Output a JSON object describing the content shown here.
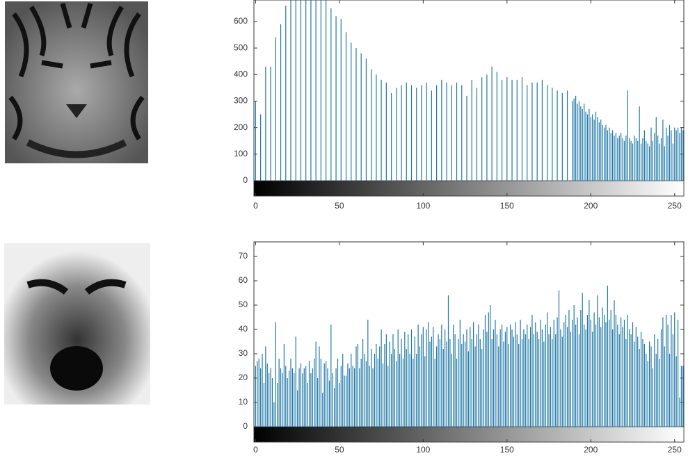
{
  "chart_data": [
    {
      "type": "bar",
      "color": "#1f78a6",
      "xlim": [
        -1,
        255.5
      ],
      "ylim": [
        0,
        681
      ],
      "xticks": [
        0,
        50,
        100,
        150,
        200,
        250
      ],
      "yticks": [
        0,
        100,
        200,
        300,
        400,
        500,
        600
      ],
      "x": [
        0,
        3,
        6,
        9,
        12,
        15,
        18,
        21,
        24,
        27,
        30,
        33,
        36,
        39,
        42,
        45,
        48,
        51,
        54,
        57,
        60,
        63,
        66,
        69,
        72,
        75,
        78,
        81,
        84,
        87,
        90,
        93,
        96,
        99,
        102,
        105,
        108,
        111,
        114,
        117,
        120,
        123,
        126,
        129,
        132,
        135,
        138,
        141,
        144,
        147,
        150,
        153,
        156,
        159,
        162,
        165,
        168,
        171,
        174,
        177,
        180,
        183,
        186,
        189,
        190,
        191,
        192,
        193,
        194,
        195,
        196,
        197,
        198,
        199,
        200,
        201,
        202,
        203,
        204,
        205,
        206,
        207,
        208,
        209,
        210,
        211,
        212,
        213,
        214,
        215,
        216,
        217,
        218,
        219,
        220,
        221,
        222,
        223,
        224,
        225,
        226,
        227,
        228,
        229,
        230,
        231,
        232,
        233,
        234,
        235,
        236,
        237,
        238,
        239,
        240,
        241,
        242,
        243,
        244,
        245,
        246,
        247,
        248,
        249,
        250,
        251,
        252,
        253,
        254,
        255
      ],
      "values": [
        300,
        250,
        430,
        430,
        540,
        590,
        660,
        680,
        680,
        680,
        680,
        680,
        680,
        680,
        680,
        650,
        620,
        610,
        560,
        520,
        500,
        480,
        460,
        420,
        400,
        380,
        370,
        330,
        350,
        360,
        370,
        360,
        350,
        360,
        370,
        340,
        360,
        380,
        370,
        360,
        370,
        360,
        320,
        380,
        350,
        390,
        400,
        430,
        410,
        380,
        390,
        380,
        380,
        390,
        360,
        370,
        370,
        380,
        360,
        350,
        340,
        330,
        340,
        300,
        310,
        320,
        290,
        300,
        280,
        270,
        290,
        260,
        250,
        270,
        240,
        250,
        230,
        260,
        240,
        220,
        230,
        210,
        200,
        210,
        190,
        200,
        180,
        190,
        170,
        180,
        160,
        170,
        180,
        160,
        150,
        170,
        340,
        160,
        150,
        140,
        170,
        160,
        150,
        280,
        140,
        160,
        190,
        150,
        140,
        130,
        200,
        150,
        180,
        240,
        170,
        140,
        160,
        230,
        130,
        200,
        170,
        210,
        190,
        140,
        200,
        190,
        200,
        180,
        200,
        190
      ]
    },
    {
      "type": "bar",
      "color": "#1f78a6",
      "xlim": [
        -1,
        255.5
      ],
      "ylim": [
        0,
        76
      ],
      "xticks": [
        0,
        50,
        100,
        150,
        200,
        250
      ],
      "yticks": [
        0,
        10,
        20,
        30,
        40,
        50,
        60,
        70
      ],
      "x": [
        0,
        1,
        2,
        3,
        4,
        5,
        6,
        7,
        8,
        9,
        10,
        11,
        12,
        13,
        14,
        15,
        16,
        17,
        18,
        19,
        20,
        21,
        22,
        23,
        24,
        25,
        26,
        27,
        28,
        29,
        30,
        31,
        32,
        33,
        34,
        35,
        36,
        37,
        38,
        39,
        40,
        41,
        42,
        43,
        44,
        45,
        46,
        47,
        48,
        49,
        50,
        51,
        52,
        53,
        54,
        55,
        56,
        57,
        58,
        59,
        60,
        61,
        62,
        63,
        64,
        65,
        66,
        67,
        68,
        69,
        70,
        71,
        72,
        73,
        74,
        75,
        76,
        77,
        78,
        79,
        80,
        81,
        82,
        83,
        84,
        85,
        86,
        87,
        88,
        89,
        90,
        91,
        92,
        93,
        94,
        95,
        96,
        97,
        98,
        99,
        100,
        101,
        102,
        103,
        104,
        105,
        106,
        107,
        108,
        109,
        110,
        111,
        112,
        113,
        114,
        115,
        116,
        117,
        118,
        119,
        120,
        121,
        122,
        123,
        124,
        125,
        126,
        127,
        128,
        129,
        130,
        131,
        132,
        133,
        134,
        135,
        136,
        137,
        138,
        139,
        140,
        141,
        142,
        143,
        144,
        145,
        146,
        147,
        148,
        149,
        150,
        151,
        152,
        153,
        154,
        155,
        156,
        157,
        158,
        159,
        160,
        161,
        162,
        163,
        164,
        165,
        166,
        167,
        168,
        169,
        170,
        171,
        172,
        173,
        174,
        175,
        176,
        177,
        178,
        179,
        180,
        181,
        182,
        183,
        184,
        185,
        186,
        187,
        188,
        189,
        190,
        191,
        192,
        193,
        194,
        195,
        196,
        197,
        198,
        199,
        200,
        201,
        202,
        203,
        204,
        205,
        206,
        207,
        208,
        209,
        210,
        211,
        212,
        213,
        214,
        215,
        216,
        217,
        218,
        219,
        220,
        221,
        222,
        223,
        224,
        225,
        226,
        227,
        228,
        229,
        230,
        231,
        232,
        233,
        234,
        235,
        236,
        237,
        238,
        239,
        240,
        241,
        242,
        243,
        244,
        245,
        246,
        247,
        248,
        249,
        250,
        251,
        252,
        253,
        254,
        255
      ],
      "values": [
        25,
        27,
        28,
        24,
        30,
        18,
        33,
        26,
        22,
        24,
        20,
        10,
        43,
        18,
        28,
        24,
        22,
        34,
        25,
        20,
        23,
        28,
        24,
        22,
        37,
        15,
        24,
        26,
        22,
        24,
        25,
        18,
        27,
        22,
        24,
        28,
        35,
        20,
        33,
        28,
        14,
        26,
        27,
        24,
        19,
        42,
        22,
        16,
        24,
        28,
        18,
        25,
        30,
        21,
        21,
        26,
        24,
        30,
        25,
        24,
        33,
        34,
        24,
        28,
        36,
        30,
        27,
        44,
        25,
        32,
        24,
        30,
        34,
        28,
        33,
        40,
        26,
        34,
        38,
        25,
        35,
        30,
        38,
        32,
        27,
        40,
        30,
        36,
        28,
        39,
        32,
        38,
        30,
        40,
        28,
        37,
        30,
        42,
        33,
        38,
        41,
        29,
        40,
        43,
        35,
        37,
        41,
        28,
        33,
        38,
        36,
        42,
        32,
        40,
        35,
        54,
        36,
        30,
        42,
        38,
        28,
        36,
        44,
        34,
        38,
        35,
        40,
        31,
        41,
        36,
        43,
        33,
        38,
        42,
        36,
        32,
        40,
        46,
        39,
        47,
        50,
        36,
        40,
        44,
        38,
        33,
        40,
        42,
        35,
        39,
        41,
        34,
        42,
        40,
        37,
        43,
        38,
        34,
        44,
        36,
        40,
        38,
        42,
        36,
        41,
        46,
        38,
        43,
        39,
        36,
        44,
        40,
        35,
        42,
        47,
        38,
        41,
        36,
        44,
        38,
        45,
        56,
        40,
        37,
        43,
        46,
        41,
        48,
        39,
        44,
        50,
        42,
        45,
        38,
        48,
        55,
        42,
        40,
        46,
        52,
        44,
        39,
        47,
        42,
        54,
        45,
        41,
        49,
        46,
        43,
        58,
        44,
        48,
        40,
        52,
        46,
        42,
        38,
        45,
        41,
        44,
        36,
        46,
        40,
        38,
        43,
        35,
        41,
        37,
        32,
        39,
        36,
        34,
        30,
        27,
        35,
        33,
        24,
        38,
        30,
        36,
        28,
        40,
        45,
        33,
        46,
        42,
        30,
        46,
        38,
        47,
        29,
        44,
        12,
        25,
        25
      ]
    }
  ]
}
